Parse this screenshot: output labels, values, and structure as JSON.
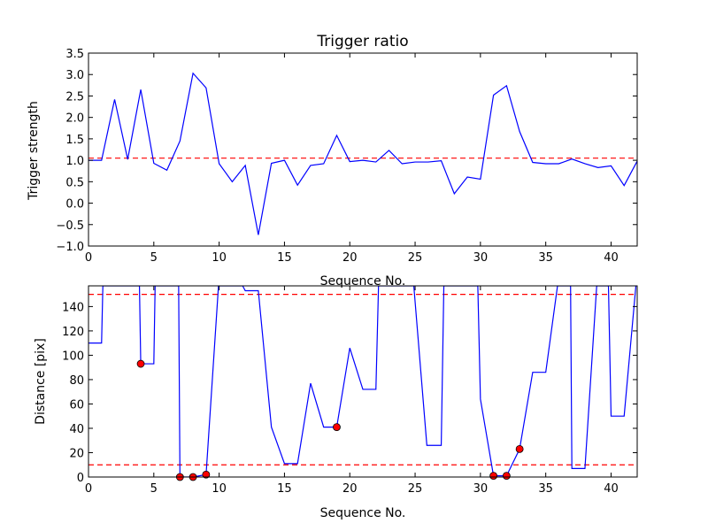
{
  "chart_data": [
    {
      "type": "line",
      "title": "Trigger ratio",
      "xlabel": "Sequence No.",
      "ylabel": "Trigger strength",
      "xlim": [
        0,
        42
      ],
      "ylim": [
        -1.0,
        3.5
      ],
      "xticks": [
        "0",
        "5",
        "10",
        "15",
        "20",
        "25",
        "30",
        "35",
        "40"
      ],
      "yticks": [
        "−1.0",
        "−0.5",
        "0.0",
        "0.5",
        "1.0",
        "1.5",
        "2.0",
        "2.5",
        "3.0",
        "3.5"
      ],
      "line_color": "#0000ff",
      "series": [
        {
          "x": [
            0,
            1,
            2,
            3,
            4,
            5,
            6,
            7,
            8,
            9,
            10,
            11,
            12,
            13,
            14,
            15,
            16,
            17,
            18,
            19,
            20,
            21,
            22,
            23,
            24,
            25,
            26,
            27,
            28,
            29,
            30,
            31,
            32,
            33,
            34,
            35,
            36,
            37,
            38,
            39,
            40,
            41,
            42
          ],
          "values": [
            1.0,
            1.0,
            2.42,
            1.02,
            2.65,
            0.93,
            0.77,
            1.45,
            3.03,
            2.69,
            0.92,
            0.5,
            0.88,
            -0.74,
            0.93,
            1.0,
            0.42,
            0.88,
            0.92,
            1.58,
            0.97,
            1.0,
            0.96,
            1.23,
            0.92,
            0.96,
            0.96,
            0.99,
            0.22,
            0.61,
            0.56,
            2.52,
            2.74,
            1.67,
            0.95,
            0.92,
            0.92,
            1.03,
            0.92,
            0.83,
            0.87,
            0.41,
            0.98
          ]
        }
      ],
      "hlines": [
        {
          "y": 1.05,
          "color": "#ff0000",
          "style": "dashed"
        }
      ]
    },
    {
      "type": "line",
      "title": "",
      "xlabel": "Sequence No.",
      "ylabel": "Distance [pix]",
      "xlim": [
        0,
        42
      ],
      "ylim": [
        0,
        157
      ],
      "xticks": [
        "0",
        "5",
        "10",
        "15",
        "20",
        "25",
        "30",
        "35",
        "40"
      ],
      "yticks": [
        "0",
        "20",
        "40",
        "60",
        "80",
        "100",
        "120",
        "140"
      ],
      "line_color": "#0000ff",
      "series": [
        {
          "x": [
            0,
            1,
            1.1,
            3.9,
            4,
            5,
            5.1,
            6.9,
            7,
            8,
            9,
            9.95,
            11.8,
            12,
            13,
            14,
            15,
            16,
            17,
            18,
            19,
            20,
            21,
            22,
            22.2,
            24.9,
            25.9,
            27,
            27.2,
            29.8,
            30,
            31,
            32,
            33,
            34,
            35,
            35.9,
            36.9,
            37,
            38,
            38.9,
            39.8,
            40,
            41,
            41.9
          ],
          "values": [
            110,
            110,
            157,
            157,
            93,
            93,
            157,
            157,
            0,
            0,
            2,
            157,
            157,
            153,
            153,
            41,
            11,
            11,
            77,
            41,
            41,
            106,
            72,
            72,
            157,
            157,
            26,
            26,
            157,
            157,
            64,
            1,
            1,
            23,
            86,
            86,
            157,
            157,
            7,
            7,
            157,
            157,
            50,
            50,
            157
          ]
        }
      ],
      "markers": {
        "color": "#ff0000",
        "points": [
          {
            "x": 4,
            "y": 93
          },
          {
            "x": 7,
            "y": 0
          },
          {
            "x": 8,
            "y": 0
          },
          {
            "x": 9,
            "y": 2
          },
          {
            "x": 19,
            "y": 41
          },
          {
            "x": 31,
            "y": 1
          },
          {
            "x": 32,
            "y": 1
          },
          {
            "x": 33,
            "y": 23
          }
        ]
      },
      "hlines": [
        {
          "y": 150,
          "color": "#ff0000",
          "style": "dashed"
        },
        {
          "y": 10,
          "color": "#ff0000",
          "style": "dashed"
        }
      ]
    }
  ]
}
